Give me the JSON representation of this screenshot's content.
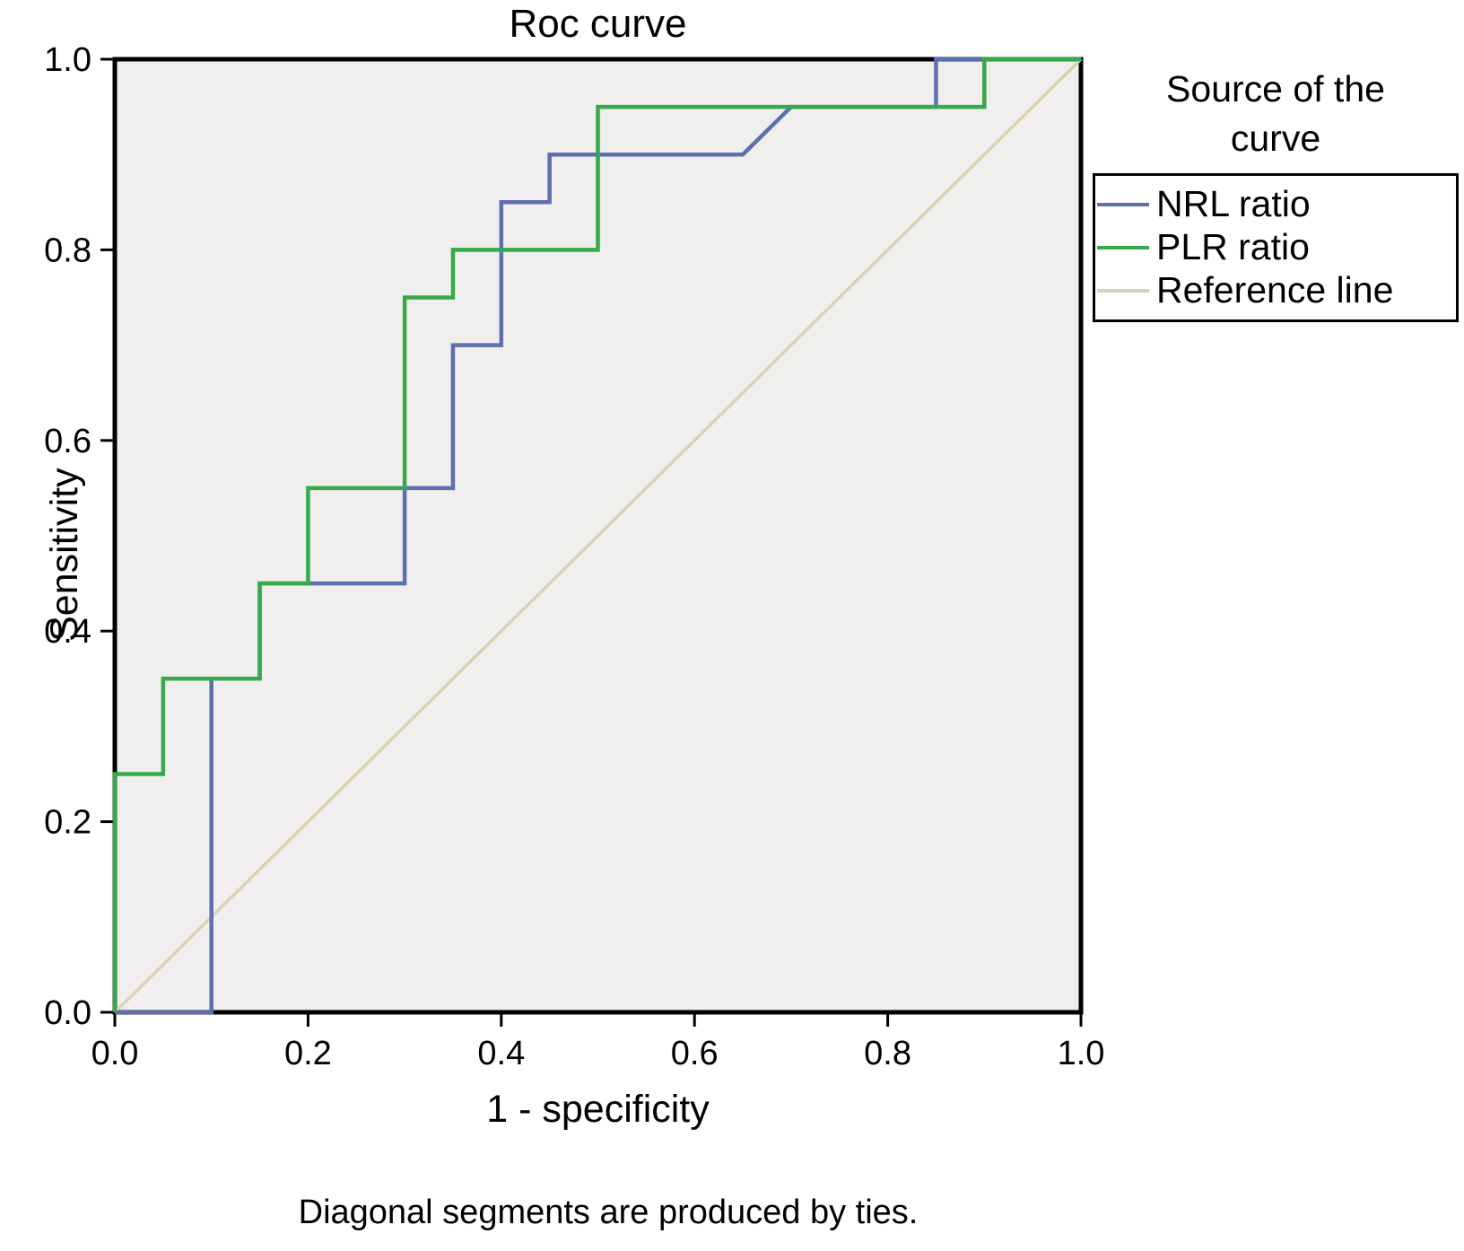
{
  "title": "Roc curve",
  "footnote": "Diagonal segments are produced by ties.",
  "legend": {
    "title": "Source of the curve",
    "items": [
      {
        "label": "NRL ratio",
        "color": "#5c6fb0"
      },
      {
        "label": "PLR ratio",
        "color": "#36a94a"
      },
      {
        "label": "Reference line",
        "color": "#d8d4b6"
      }
    ]
  },
  "chart_data": {
    "type": "line",
    "title": "Roc curve",
    "xlabel": "1 - specificity",
    "ylabel": "Sensitivity",
    "xlim": [
      0,
      1
    ],
    "ylim": [
      0,
      1
    ],
    "xticks": [
      "0.0",
      "0.2",
      "0.4",
      "0.6",
      "0.8",
      "1.0"
    ],
    "yticks": [
      "0.0",
      "0.2",
      "0.4",
      "0.6",
      "0.8",
      "1.0"
    ],
    "grid": false,
    "legend_position": "right",
    "plot_bg": "#f0efed",
    "frame_color": "#000000",
    "series": [
      {
        "name": "reference-line",
        "label": "Reference line",
        "color": "#d8d4b6",
        "width": 3.5,
        "points": [
          [
            0,
            0
          ],
          [
            1,
            1
          ]
        ]
      },
      {
        "name": "roc-curve-nrl",
        "label": "NRL ratio",
        "color": "#5c6fb0",
        "width": 4.5,
        "points": [
          [
            0,
            0
          ],
          [
            0.1,
            0
          ],
          [
            0.1,
            0.35
          ],
          [
            0.15,
            0.35
          ],
          [
            0.15,
            0.45
          ],
          [
            0.3,
            0.45
          ],
          [
            0.3,
            0.55
          ],
          [
            0.35,
            0.55
          ],
          [
            0.35,
            0.7
          ],
          [
            0.4,
            0.7
          ],
          [
            0.4,
            0.85
          ],
          [
            0.45,
            0.85
          ],
          [
            0.45,
            0.9
          ],
          [
            0.65,
            0.9
          ],
          [
            0.7,
            0.95
          ],
          [
            0.85,
            0.95
          ],
          [
            0.85,
            1.0
          ],
          [
            1.0,
            1.0
          ]
        ]
      },
      {
        "name": "roc-curve-plr",
        "label": "PLR ratio",
        "color": "#36a94a",
        "width": 4.5,
        "points": [
          [
            0,
            0
          ],
          [
            0,
            0.25
          ],
          [
            0.05,
            0.25
          ],
          [
            0.05,
            0.35
          ],
          [
            0.15,
            0.35
          ],
          [
            0.15,
            0.45
          ],
          [
            0.2,
            0.45
          ],
          [
            0.2,
            0.55
          ],
          [
            0.3,
            0.55
          ],
          [
            0.3,
            0.75
          ],
          [
            0.35,
            0.75
          ],
          [
            0.35,
            0.8
          ],
          [
            0.5,
            0.8
          ],
          [
            0.5,
            0.95
          ],
          [
            0.9,
            0.95
          ],
          [
            0.9,
            1.0
          ],
          [
            1.0,
            1.0
          ]
        ]
      }
    ]
  }
}
